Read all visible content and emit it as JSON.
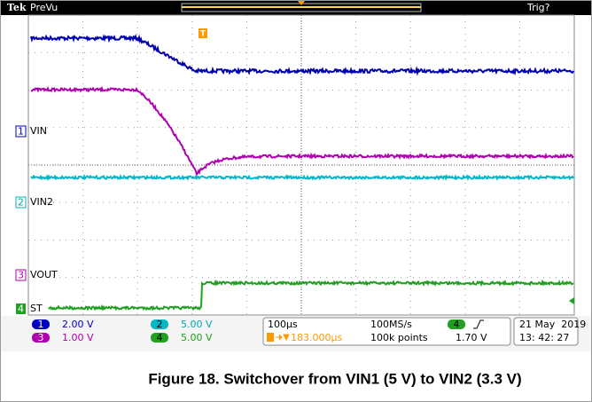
{
  "header": {
    "brand": "Tek",
    "mode": "PreVu",
    "trigger_marker": "T",
    "trigger_status": "Trig?"
  },
  "channels": [
    {
      "number": "1",
      "label": "VIN"
    },
    {
      "number": "2",
      "label": "VIN2"
    },
    {
      "number": "3",
      "label": "VOUT"
    },
    {
      "number": "4",
      "label": "ST"
    }
  ],
  "status": {
    "ch1_scale": "2.00 V",
    "ch3_scale": "1.00 V",
    "ch2_scale": "5.00 V",
    "ch4_scale": "5.00 V",
    "timebase": "100μs",
    "trigger_position": "183.000μs",
    "sample_rate": "100MS/s",
    "record_length": "100k points",
    "trigger_level": "1.70 V",
    "date": "21 May  2019",
    "time": "13: 42: 27"
  },
  "caption": "Figure 18. Switchover from VIN1 (5 V) to VIN2 (3.3 V)"
}
